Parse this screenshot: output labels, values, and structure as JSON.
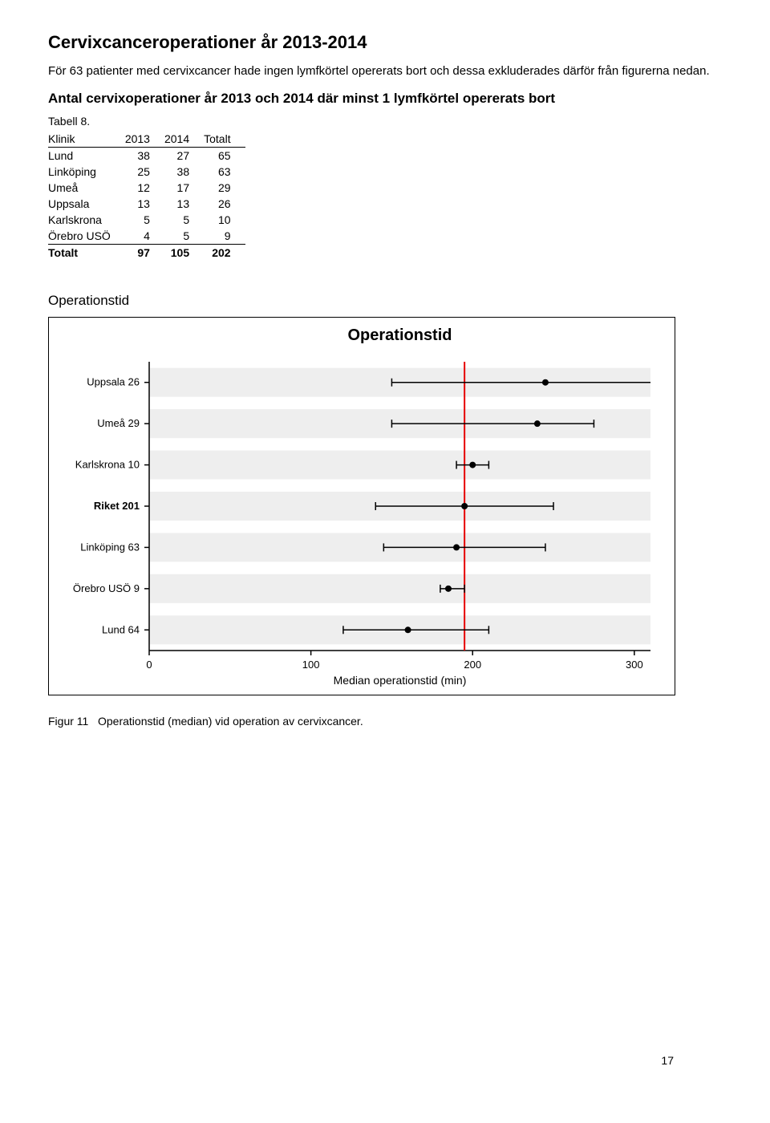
{
  "heading": "Cervixcanceroperationer år 2013-2014",
  "intro": "För 63 patienter med cervixcancer hade ingen lymfkörtel opererats bort och dessa exkluderades därför från figurerna nedan.",
  "subheading": "Antal cervixoperationer år 2013 och 2014 där minst 1 lymfkörtel opererats bort",
  "table_caption": "Tabell 8.",
  "table": {
    "columns": [
      "Klinik",
      "2013",
      "2014",
      "Totalt"
    ],
    "rows": [
      [
        "Lund",
        "38",
        "27",
        "65"
      ],
      [
        "Linköping",
        "25",
        "38",
        "63"
      ],
      [
        "Umeå",
        "12",
        "17",
        "29"
      ],
      [
        "Uppsala",
        "13",
        "13",
        "26"
      ],
      [
        "Karlskrona",
        "5",
        "5",
        "10"
      ],
      [
        "Örebro USÖ",
        "4",
        "5",
        "9"
      ]
    ],
    "total_row": [
      "Totalt",
      "97",
      "105",
      "202"
    ]
  },
  "section_label": "Operationstid",
  "chart": {
    "type": "forest",
    "title": "Operationstid",
    "title_fontsize": 20,
    "xlabel": "Median operationstid (min)",
    "label_fontsize": 14,
    "tick_fontsize": 13,
    "xlim": [
      0,
      310
    ],
    "xticks": [
      0,
      100,
      200,
      300
    ],
    "reference_line_x": 195,
    "reference_line_color": "#e60000",
    "axis_color": "#000000",
    "band_color": "#eeeeee",
    "background_color": "#ffffff",
    "point_color": "#000000",
    "whisker_color": "#000000",
    "point_radius": 4,
    "whisker_width": 1.5,
    "entries": [
      {
        "label": "Uppsala 26",
        "bold": false,
        "median": 245,
        "low": 150,
        "high": 315
      },
      {
        "label": "Umeå 29",
        "bold": false,
        "median": 240,
        "low": 150,
        "high": 275
      },
      {
        "label": "Karlskrona 10",
        "bold": false,
        "median": 200,
        "low": 190,
        "high": 210
      },
      {
        "label": "Riket 201",
        "bold": true,
        "median": 195,
        "low": 140,
        "high": 250
      },
      {
        "label": "Linköping 63",
        "bold": false,
        "median": 190,
        "low": 145,
        "high": 245
      },
      {
        "label": "Örebro USÖ 9",
        "bold": false,
        "median": 185,
        "low": 180,
        "high": 195
      },
      {
        "label": "Lund 64",
        "bold": false,
        "median": 160,
        "low": 120,
        "high": 210
      }
    ]
  },
  "figure_caption_prefix": "Figur 11",
  "figure_caption_text": "Operationstid (median) vid operation av cervixcancer.",
  "page_number": "17"
}
